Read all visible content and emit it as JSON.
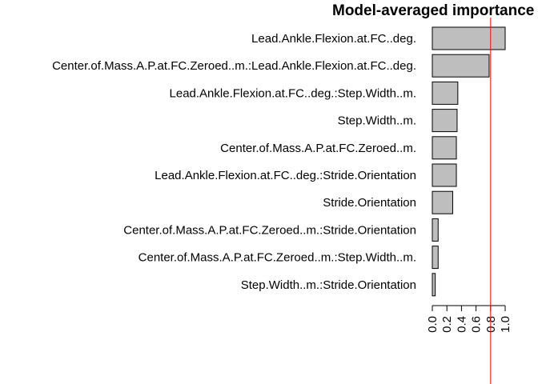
{
  "chart_data": {
    "type": "bar",
    "orientation": "horizontal",
    "title": "Model-averaged importance",
    "categories": [
      "Lead.Ankle.Flexion.at.FC..deg.",
      "Center.of.Mass.A.P.at.FC.Zeroed..m.:Lead.Ankle.Flexion.at.FC..deg.",
      "Lead.Ankle.Flexion.at.FC..deg.:Step.Width..m.",
      "Step.Width..m.",
      "Center.of.Mass.A.P.at.FC.Zeroed..m.",
      "Lead.Ankle.Flexion.at.FC..deg.:Stride.Orientation",
      "Stride.Orientation",
      "Center.of.Mass.A.P.at.FC.Zeroed..m.:Stride.Orientation",
      "Center.of.Mass.A.P.at.FC.Zeroed..m.:Step.Width..m.",
      "Step.Width..m.:Stride.Orientation"
    ],
    "values": [
      1.0,
      0.78,
      0.35,
      0.34,
      0.33,
      0.33,
      0.28,
      0.08,
      0.08,
      0.04
    ],
    "xlim": [
      0,
      1.0
    ],
    "xticks": [
      "0.0",
      "0.2",
      "0.4",
      "0.6",
      "0.8",
      "1.0"
    ],
    "reference_line": 0.8,
    "colors": {
      "bar_fill": "#bebebe",
      "bar_stroke": "#000000",
      "reference_line": "#ff0000"
    },
    "grid": false,
    "legend": "none"
  }
}
